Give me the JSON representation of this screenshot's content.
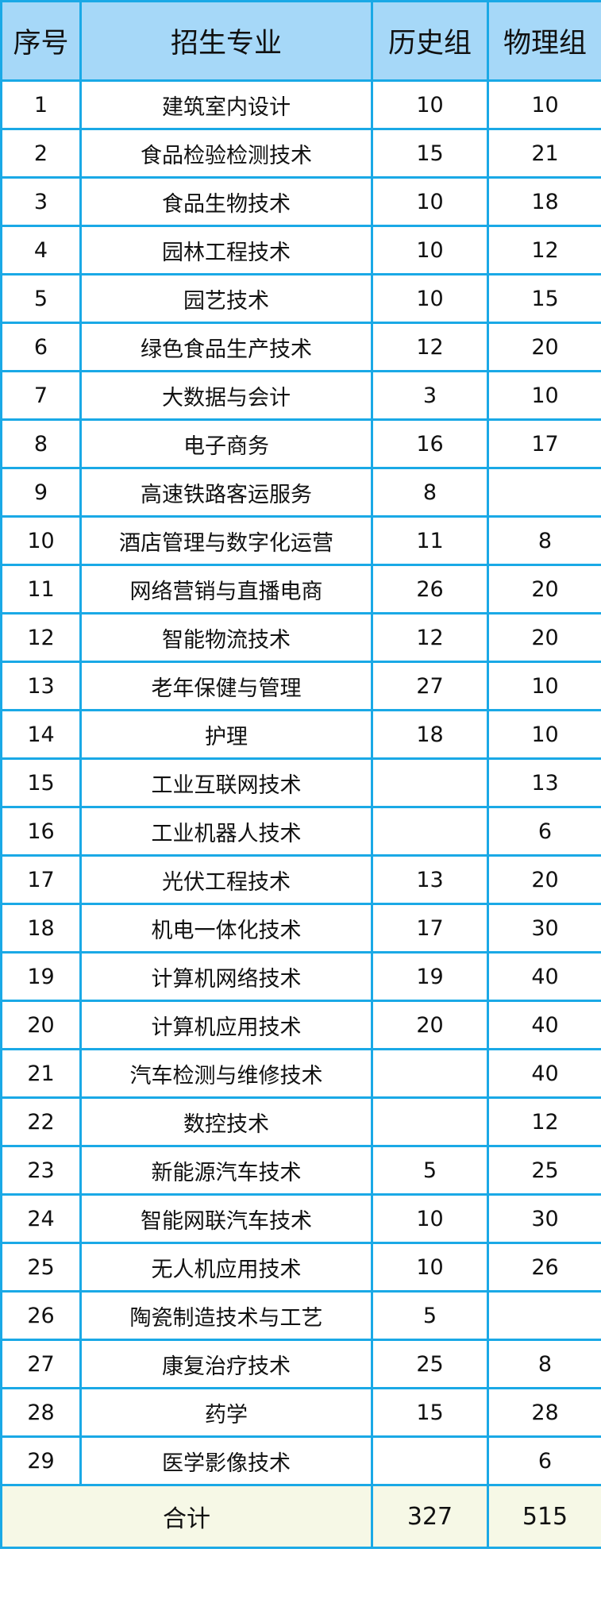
{
  "headers": [
    "序号",
    "招生专业",
    "历史组",
    "物理组"
  ],
  "rows": [
    [
      "1",
      "建筑室内设计",
      "10",
      "10"
    ],
    [
      "2",
      "食品检验检测技术",
      "15",
      "21"
    ],
    [
      "3",
      "食品生物技术",
      "10",
      "18"
    ],
    [
      "4",
      "园林工程技术",
      "10",
      "12"
    ],
    [
      "5",
      "园艺技术",
      "10",
      "15"
    ],
    [
      "6",
      "绿色食品生产技术",
      "12",
      "20"
    ],
    [
      "7",
      "大数据与会计",
      "3",
      "10"
    ],
    [
      "8",
      "电子商务",
      "16",
      "17"
    ],
    [
      "9",
      "高速铁路客运服务",
      "8",
      ""
    ],
    [
      "10",
      "酒店管理与数字化运营",
      "11",
      "8"
    ],
    [
      "11",
      "网络营销与直播电商",
      "26",
      "20"
    ],
    [
      "12",
      "智能物流技术",
      "12",
      "20"
    ],
    [
      "13",
      "老年保健与管理",
      "27",
      "10"
    ],
    [
      "14",
      "护理",
      "18",
      "10"
    ],
    [
      "15",
      "工业互联网技术",
      "",
      "13"
    ],
    [
      "16",
      "工业机器人技术",
      "",
      "6"
    ],
    [
      "17",
      "光伏工程技术",
      "13",
      "20"
    ],
    [
      "18",
      "机电一体化技术",
      "17",
      "30"
    ],
    [
      "19",
      "计算机网络技术",
      "19",
      "40"
    ],
    [
      "20",
      "计算机应用技术",
      "20",
      "40"
    ],
    [
      "21",
      "汽车检测与维修技术",
      "",
      "40"
    ],
    [
      "22",
      "数控技术",
      "",
      "12"
    ],
    [
      "23",
      "新能源汽车技术",
      "5",
      "25"
    ],
    [
      "24",
      "智能网联汽车技术",
      "10",
      "30"
    ],
    [
      "25",
      "无人机应用技术",
      "10",
      "26"
    ],
    [
      "26",
      "陶瓷制造技术与工艺",
      "5",
      ""
    ],
    [
      "27",
      "康复治疗技术",
      "25",
      "8"
    ],
    [
      "28",
      "药学",
      "15",
      "28"
    ],
    [
      "29",
      "医学影像技术",
      "",
      "6"
    ]
  ],
  "total": {
    "label": "合计",
    "history": "327",
    "physics": "515"
  },
  "colors": {
    "border": "#1aa9e6",
    "header_bg": "#a6d8f8",
    "total_bg": "#f6f8e6"
  }
}
